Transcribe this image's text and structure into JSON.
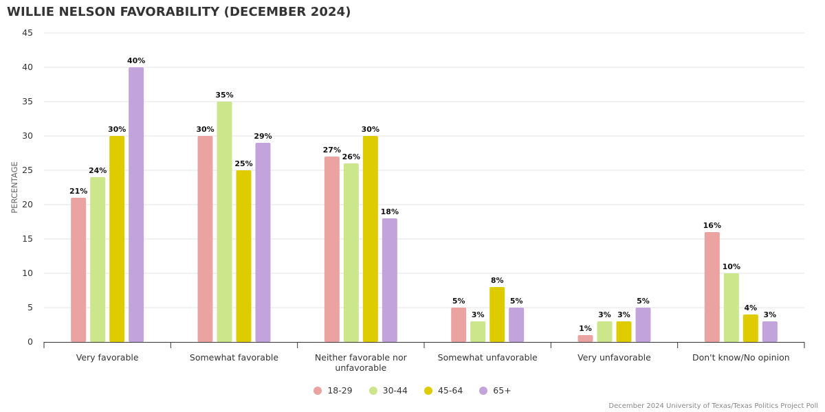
{
  "title": "WILLIE NELSON FAVORABILITY (DECEMBER 2024)",
  "source": "December 2024 University of Texas/Texas Politics Project Poll",
  "chart_data": {
    "type": "bar",
    "title": "WILLIE NELSON FAVORABILITY (DECEMBER 2024)",
    "xlabel": "",
    "ylabel": "PERCENTAGE",
    "ylim": [
      0,
      45
    ],
    "yticks": [
      0,
      5,
      10,
      15,
      20,
      25,
      30,
      35,
      40,
      45
    ],
    "grid": true,
    "legend_position": "bottom-center",
    "categories": [
      [
        "Very favorable"
      ],
      [
        "Somewhat favorable"
      ],
      [
        "Neither favorable nor",
        "unfavorable"
      ],
      [
        "Somewhat unfavorable"
      ],
      [
        "Very unfavorable"
      ],
      [
        "Don't know/No opinion"
      ]
    ],
    "series": [
      {
        "name": "18-29",
        "color": "#eba3a1",
        "values": [
          21,
          30,
          27,
          5,
          1,
          16
        ]
      },
      {
        "name": "30-44",
        "color": "#cce68c",
        "values": [
          24,
          35,
          26,
          3,
          3,
          10
        ]
      },
      {
        "name": "45-64",
        "color": "#dfcc00",
        "values": [
          30,
          25,
          30,
          8,
          3,
          4
        ]
      },
      {
        "name": "65+",
        "color": "#c3a3db",
        "values": [
          40,
          29,
          18,
          5,
          5,
          3
        ]
      }
    ],
    "value_suffix": "%"
  }
}
